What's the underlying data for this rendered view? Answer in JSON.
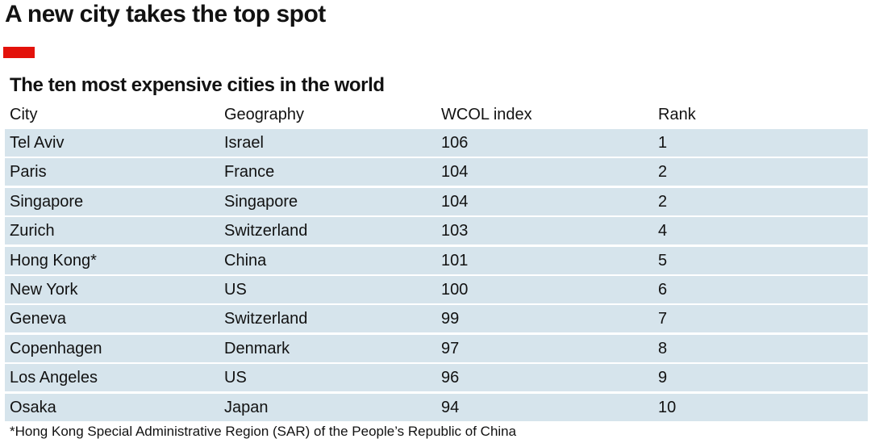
{
  "headline": "A new city takes the top spot",
  "brand": {
    "accent_color": "#e3120b",
    "row_color": "#d6e4ec"
  },
  "chart_data": {
    "type": "table",
    "title": "The ten most expensive cities in the world",
    "columns": [
      "City",
      "Geography",
      "WCOL index",
      "Rank"
    ],
    "rows": [
      [
        "Tel Aviv",
        "Israel",
        "106",
        "1"
      ],
      [
        "Paris",
        "France",
        "104",
        "2"
      ],
      [
        "Singapore",
        "Singapore",
        "104",
        "2"
      ],
      [
        "Zurich",
        "Switzerland",
        "103",
        "4"
      ],
      [
        "Hong Kong*",
        "China",
        "101",
        "5"
      ],
      [
        "New York",
        "US",
        "100",
        "6"
      ],
      [
        "Geneva",
        "Switzerland",
        "99",
        "7"
      ],
      [
        "Copenhagen",
        "Denmark",
        "97",
        "8"
      ],
      [
        "Los Angeles",
        "US",
        "96",
        "9"
      ],
      [
        "Osaka",
        "Japan",
        "94",
        "10"
      ]
    ],
    "footnote": "*Hong Kong Special Administrative Region (SAR) of the People’s Republic of China"
  }
}
